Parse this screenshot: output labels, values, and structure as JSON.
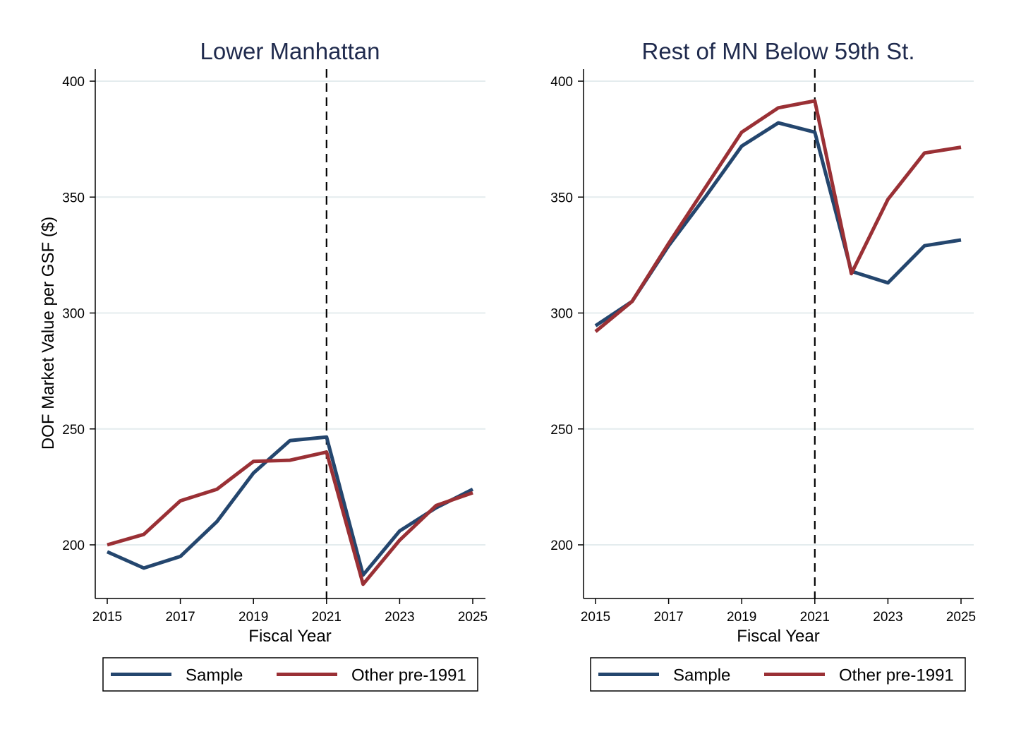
{
  "colors": {
    "sample": "#24466e",
    "other": "#9a3035",
    "grid": "#e4ecee",
    "axis": "#000000",
    "title": "#1f2a4d",
    "background": "#ffffff"
  },
  "chart_data": [
    {
      "type": "line",
      "title": "Lower Manhattan",
      "xlabel": "Fiscal Year",
      "ylabel": "DOF Market Value per GSF ($)",
      "xlim": [
        2015,
        2025
      ],
      "ylim": [
        178,
        402
      ],
      "x_ticks": [
        "2015",
        "2017",
        "2019",
        "2021",
        "2023",
        "2025"
      ],
      "y_ticks": [
        "200",
        "250",
        "300",
        "350",
        "400"
      ],
      "vline": 2021,
      "grid": true,
      "legend_position": "bottom",
      "x": [
        2015,
        2016,
        2017,
        2018,
        2019,
        2020,
        2021,
        2022,
        2023,
        2024,
        2025
      ],
      "series": [
        {
          "name": "Sample",
          "color_key": "sample",
          "values": [
            197,
            190,
            195,
            210,
            231,
            245,
            246.5,
            187,
            206,
            216,
            224
          ]
        },
        {
          "name": "Other pre-1991",
          "color_key": "other",
          "values": [
            200,
            204.5,
            219,
            224,
            236,
            236.5,
            240,
            183,
            202,
            217,
            222.5
          ]
        }
      ]
    },
    {
      "type": "line",
      "title": "Rest of MN Below 59th St.",
      "xlabel": "Fiscal Year",
      "ylabel": "",
      "xlim": [
        2015,
        2025
      ],
      "ylim": [
        178,
        402
      ],
      "x_ticks": [
        "2015",
        "2017",
        "2019",
        "2021",
        "2023",
        "2025"
      ],
      "y_ticks": [
        "200",
        "250",
        "300",
        "350",
        "400"
      ],
      "vline": 2021,
      "grid": true,
      "legend_position": "bottom",
      "x": [
        2015,
        2016,
        2017,
        2018,
        2019,
        2020,
        2021,
        2022,
        2023,
        2024,
        2025
      ],
      "series": [
        {
          "name": "Sample",
          "color_key": "sample",
          "values": [
            294.5,
            305,
            329,
            350,
            372,
            382,
            378,
            318,
            313,
            329,
            331.5
          ]
        },
        {
          "name": "Other pre-1991",
          "color_key": "other",
          "values": [
            292,
            305,
            330,
            354,
            378,
            388.5,
            391.5,
            317,
            349,
            369,
            371.5
          ]
        }
      ]
    }
  ]
}
